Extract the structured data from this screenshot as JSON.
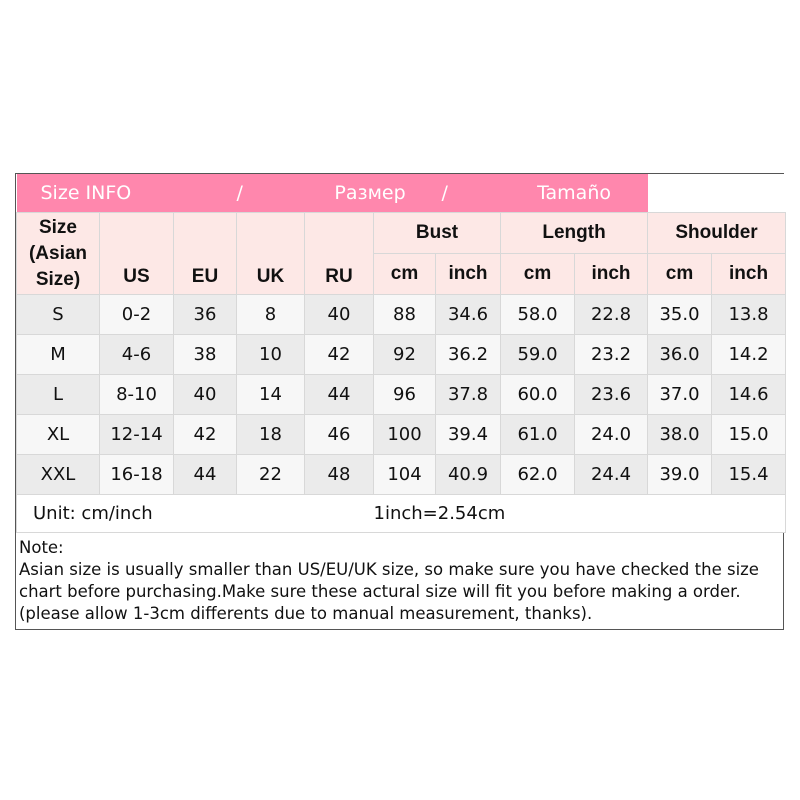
{
  "title": {
    "en": "Size INFO",
    "sep": "/",
    "ru": "Размер",
    "es": "Tamaño"
  },
  "headers": {
    "size": "Size (Asian Size)",
    "us": "US",
    "eu": "EU",
    "uk": "UK",
    "ru": "RU",
    "bust": "Bust",
    "length": "Length",
    "shoulder": "Shoulder",
    "cm": "cm",
    "inch": "inch"
  },
  "rows": [
    [
      "S",
      "0-2",
      "36",
      "8",
      "40",
      "88",
      "34.6",
      "58.0",
      "22.8",
      "35.0",
      "13.8"
    ],
    [
      "M",
      "4-6",
      "38",
      "10",
      "42",
      "92",
      "36.2",
      "59.0",
      "23.2",
      "36.0",
      "14.2"
    ],
    [
      "L",
      "8-10",
      "40",
      "14",
      "44",
      "96",
      "37.8",
      "60.0",
      "23.6",
      "37.0",
      "14.6"
    ],
    [
      "XL",
      "12-14",
      "42",
      "18",
      "46",
      "100",
      "39.4",
      "61.0",
      "24.0",
      "38.0",
      "15.0"
    ],
    [
      "XXL",
      "16-18",
      "44",
      "22",
      "48",
      "104",
      "40.9",
      "62.0",
      "24.4",
      "39.0",
      "15.4"
    ]
  ],
  "unit": "Unit: cm/inch",
  "conversion": "1inch=2.54cm",
  "note": {
    "label": "Note:",
    "text": "Asian size is usually smaller than US/EU/UK size, so make sure you have checked the size chart before purchasing.Make sure these actural size will fit you before making a order.(please allow 1-3cm differents due to manual measurement, thanks)."
  },
  "colors": {
    "title_bg": "#ff87ad",
    "header_bg": "#fde8e6"
  }
}
